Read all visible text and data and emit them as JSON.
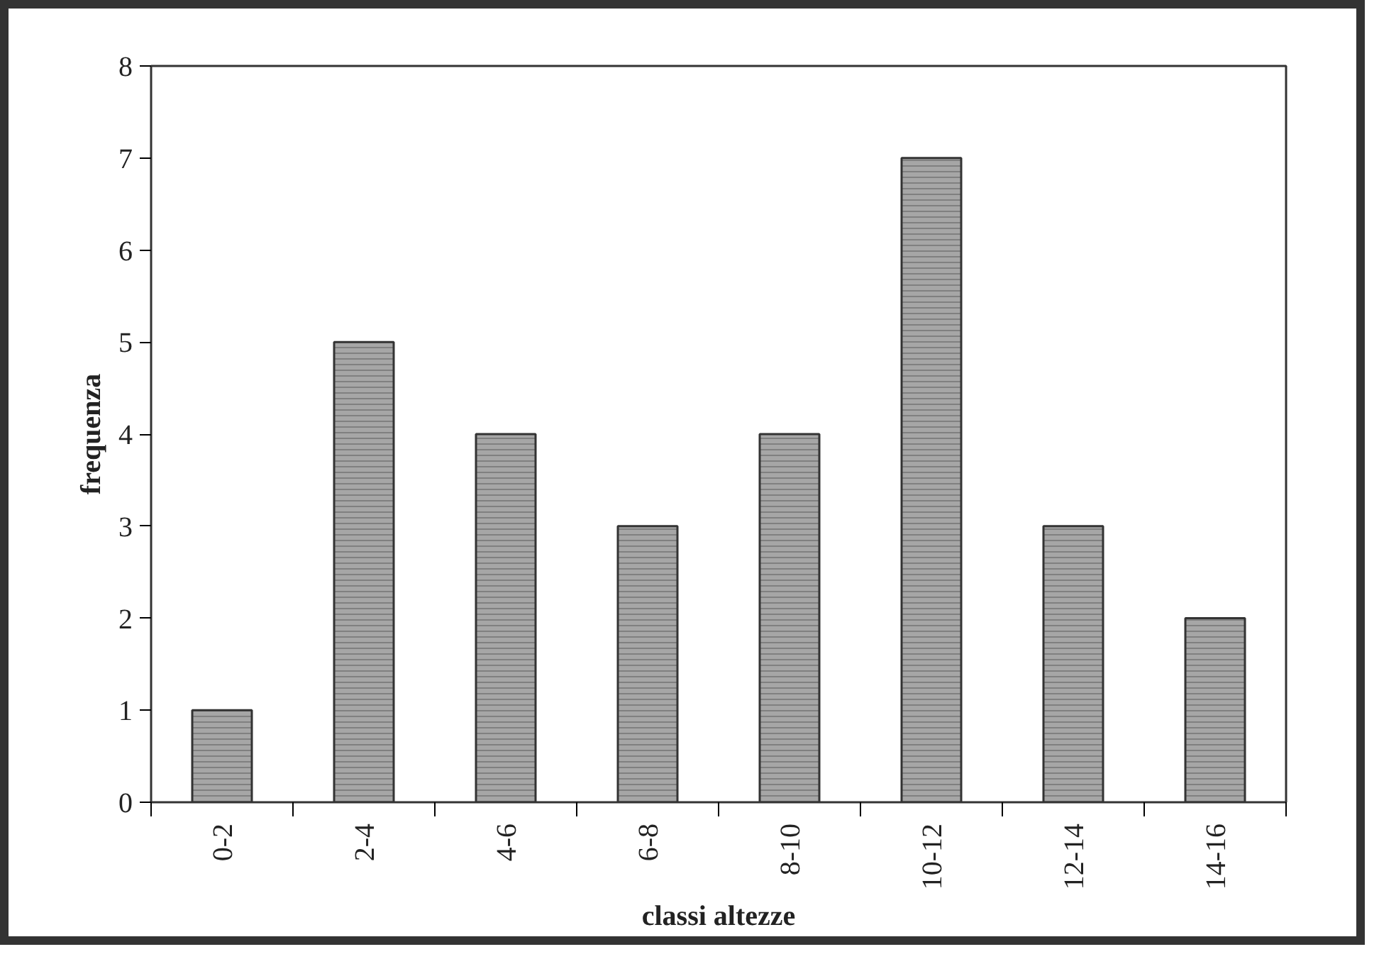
{
  "chart_data": {
    "type": "bar",
    "xlabel": "classi altezze",
    "ylabel": "frequenza",
    "categories": [
      "0-2",
      "2-4",
      "4-6",
      "6-8",
      "8-10",
      "10-12",
      "12-14",
      "14-16"
    ],
    "values": [
      1,
      5,
      4,
      3,
      4,
      7,
      3,
      2
    ],
    "color": "#a6a6a6",
    "ylim": [
      0,
      8
    ],
    "yticks": [
      0,
      1,
      2,
      3,
      4,
      5,
      6,
      7,
      8
    ],
    "grid": false
  }
}
